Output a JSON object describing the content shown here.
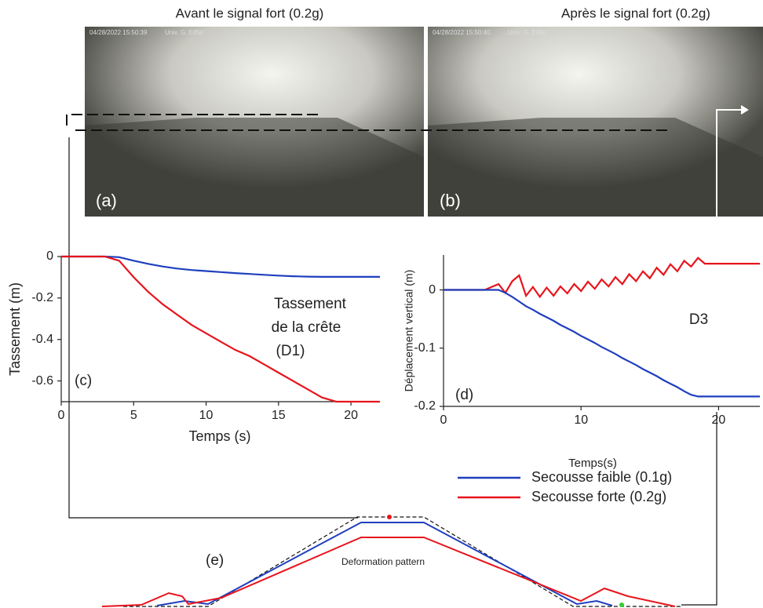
{
  "photos": [
    {
      "title": "Avant le signal fort (0.2g)",
      "timestamp": "04/28/2022 15:50:39",
      "credit": "Univ. G. Eiffel",
      "label": "(a)"
    },
    {
      "title": "Après le signal fort (0.2g)",
      "timestamp": "04/28/2022 15:50:40",
      "credit": "Univ. G. Eiffel",
      "label": "(b)"
    }
  ],
  "chart_data": [
    {
      "type": "line",
      "panel": "(c)",
      "ylabel": "Tassement  (m)",
      "xlabel": "Temps (s)",
      "annotation": [
        "Tassement",
        "de la crête",
        "(D1)"
      ],
      "x": [
        0,
        1,
        2,
        3,
        4,
        5,
        6,
        7,
        8,
        9,
        10,
        11,
        12,
        13,
        14,
        15,
        16,
        17,
        18,
        19,
        20,
        21,
        22
      ],
      "series": [
        {
          "color": "#1f3fbf",
          "values": [
            0,
            0,
            0,
            0,
            -0.003,
            -0.02,
            -0.035,
            -0.048,
            -0.058,
            -0.065,
            -0.07,
            -0.075,
            -0.08,
            -0.084,
            -0.088,
            -0.092,
            -0.095,
            -0.097,
            -0.098,
            -0.098,
            -0.098,
            -0.098,
            -0.098
          ]
        },
        {
          "color": "#e8141c",
          "values": [
            0,
            0,
            0,
            0,
            -0.02,
            -0.1,
            -0.17,
            -0.23,
            -0.28,
            -0.33,
            -0.37,
            -0.41,
            -0.45,
            -0.48,
            -0.52,
            -0.56,
            -0.6,
            -0.64,
            -0.68,
            -0.7,
            -0.7,
            -0.7,
            -0.7
          ]
        }
      ],
      "xlim": [
        0,
        22
      ],
      "ylim": [
        -0.7,
        0
      ],
      "xticks": [
        0,
        5,
        10,
        15,
        20
      ],
      "yticks": [
        0,
        -0.2,
        -0.4,
        -0.6
      ]
    },
    {
      "type": "line",
      "panel": "(d)",
      "ylabel": "Déplacement vertical (m)",
      "xlabel": "Temps(s)",
      "annotation": [
        "D3"
      ],
      "x": [
        0,
        0.5,
        1,
        1.5,
        2,
        2.5,
        3,
        3.5,
        4,
        4.5,
        5,
        5.5,
        6,
        6.5,
        7,
        7.5,
        8,
        8.5,
        9,
        9.5,
        10,
        10.5,
        11,
        11.5,
        12,
        12.5,
        13,
        13.5,
        14,
        14.5,
        15,
        15.5,
        16,
        16.5,
        17,
        17.5,
        18,
        18.5,
        19,
        19.5,
        20,
        20.5,
        21,
        21.5,
        22,
        22.5,
        23
      ],
      "series": [
        {
          "color": "#e8141c",
          "values": [
            0,
            0,
            0,
            0,
            0,
            0,
            0,
            0.005,
            0.01,
            -0.005,
            0.015,
            0.025,
            -0.01,
            0.005,
            -0.012,
            0.004,
            -0.01,
            0.006,
            -0.006,
            0.01,
            -0.002,
            0.014,
            0.002,
            0.018,
            0.006,
            0.022,
            0.01,
            0.027,
            0.015,
            0.032,
            0.02,
            0.038,
            0.026,
            0.044,
            0.032,
            0.05,
            0.04,
            0.055,
            0.045,
            0.045,
            0.045,
            0.045,
            0.045,
            0.045,
            0.045,
            0.045,
            0.045
          ]
        },
        {
          "color": "#1f3fbf",
          "values": [
            0,
            0,
            0,
            0,
            0,
            0,
            0,
            0,
            0,
            -0.005,
            -0.012,
            -0.02,
            -0.028,
            -0.034,
            -0.041,
            -0.047,
            -0.053,
            -0.06,
            -0.066,
            -0.072,
            -0.079,
            -0.085,
            -0.091,
            -0.098,
            -0.104,
            -0.11,
            -0.117,
            -0.123,
            -0.129,
            -0.136,
            -0.142,
            -0.148,
            -0.155,
            -0.161,
            -0.167,
            -0.174,
            -0.18,
            -0.183,
            -0.183,
            -0.183,
            -0.183,
            -0.183,
            -0.183,
            -0.183,
            -0.183,
            -0.183,
            -0.183
          ]
        }
      ],
      "xlim": [
        0,
        23
      ],
      "ylim": [
        -0.2,
        0.06
      ],
      "xticks": [
        0,
        10,
        20
      ],
      "yticks": [
        0,
        -0.1,
        -0.2
      ]
    }
  ],
  "diagram": {
    "label": "(e)",
    "caption": "Deformation pattern",
    "legend": [
      {
        "name": "Secousse faible (0.1g)",
        "color": "#1f3fbf"
      },
      {
        "name": "Secousse forte (0.2g)",
        "color": "#e8141c"
      }
    ]
  }
}
